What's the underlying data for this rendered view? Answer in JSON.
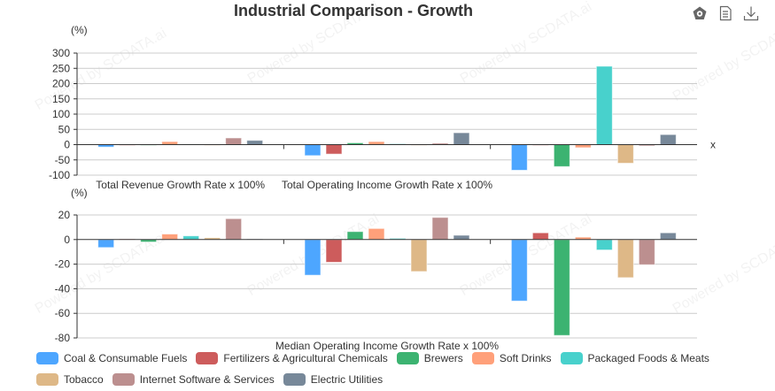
{
  "title": "Industrial Comparison - Growth",
  "toolbox": [
    {
      "name": "restore-icon"
    },
    {
      "name": "data-view-icon"
    },
    {
      "name": "download-icon"
    }
  ],
  "watermark": "Powered by SCDATA.ai",
  "chart_data": [
    {
      "type": "bar",
      "unit_label": "(%)",
      "xaxis_name": "x",
      "categories": [
        "Total Revenue Growth Rate x 100%",
        "Total Operating Income Growth Rate x 100%",
        "Median Operating Income Growth Rate x 100%"
      ],
      "visible_category_labels": [
        0,
        1
      ],
      "ylim": [
        -100,
        300
      ],
      "yticks": [
        300,
        250,
        200,
        150,
        100,
        50,
        0,
        -50,
        -100
      ],
      "grid": true,
      "series": [
        {
          "name": "Coal & Consumable Fuels",
          "color": "#4da6ff",
          "values": [
            -8,
            -36,
            -84
          ]
        },
        {
          "name": "Fertilizers & Agricultural Chemicals",
          "color": "#cd5c5c",
          "values": [
            -2,
            -31,
            0
          ]
        },
        {
          "name": "Brewers",
          "color": "#3cb371",
          "values": [
            -1,
            6,
            -72
          ]
        },
        {
          "name": "Soft Drinks",
          "color": "#ffa07a",
          "values": [
            10,
            10,
            -10
          ]
        },
        {
          "name": "Packaged Foods & Meats",
          "color": "#48d1cc",
          "values": [
            2,
            3,
            257
          ]
        },
        {
          "name": "Tobacco",
          "color": "#deb887",
          "values": [
            0,
            0,
            -61
          ]
        },
        {
          "name": "Internet Software & Services",
          "color": "#bc8f8f",
          "values": [
            22,
            5,
            -4
          ]
        },
        {
          "name": "Electric Utilities",
          "color": "#778899",
          "values": [
            14,
            39,
            33
          ]
        }
      ]
    },
    {
      "type": "bar",
      "unit_label": "(%)",
      "categories": [
        "Total Revenue Growth Rate x 100%",
        "Total Operating Income Growth Rate x 100%",
        "Median Operating Income Growth Rate x 100%"
      ],
      "visible_category_labels": [
        2
      ],
      "ylim": [
        -80,
        20
      ],
      "yticks": [
        20,
        0,
        -20,
        -40,
        -60,
        -80
      ],
      "grid": true,
      "series": [
        {
          "name": "Coal & Consumable Fuels",
          "color": "#4da6ff",
          "values": [
            -6.5,
            -29,
            -50
          ]
        },
        {
          "name": "Fertilizers & Agricultural Chemicals",
          "color": "#cd5c5c",
          "values": [
            0.5,
            -18.5,
            5.5
          ]
        },
        {
          "name": "Brewers",
          "color": "#3cb371",
          "values": [
            -2,
            6.5,
            -78
          ]
        },
        {
          "name": "Soft Drinks",
          "color": "#ffa07a",
          "values": [
            4.5,
            9,
            2
          ]
        },
        {
          "name": "Packaged Foods & Meats",
          "color": "#48d1cc",
          "values": [
            3,
            1,
            -8.5
          ]
        },
        {
          "name": "Tobacco",
          "color": "#deb887",
          "values": [
            1.5,
            -26,
            -31
          ]
        },
        {
          "name": "Internet Software & Services",
          "color": "#bc8f8f",
          "values": [
            17,
            18,
            -20.5
          ]
        },
        {
          "name": "Electric Utilities",
          "color": "#778899",
          "values": [
            0.5,
            3.5,
            5.5
          ]
        }
      ]
    }
  ],
  "legend": [
    {
      "label": "Coal & Consumable Fuels",
      "color": "#4da6ff"
    },
    {
      "label": "Fertilizers & Agricultural Chemicals",
      "color": "#cd5c5c"
    },
    {
      "label": "Brewers",
      "color": "#3cb371"
    },
    {
      "label": "Soft Drinks",
      "color": "#ffa07a"
    },
    {
      "label": "Packaged Foods & Meats",
      "color": "#48d1cc"
    },
    {
      "label": "Tobacco",
      "color": "#deb887"
    },
    {
      "label": "Internet Software & Services",
      "color": "#bc8f8f"
    },
    {
      "label": "Electric Utilities",
      "color": "#778899"
    }
  ]
}
